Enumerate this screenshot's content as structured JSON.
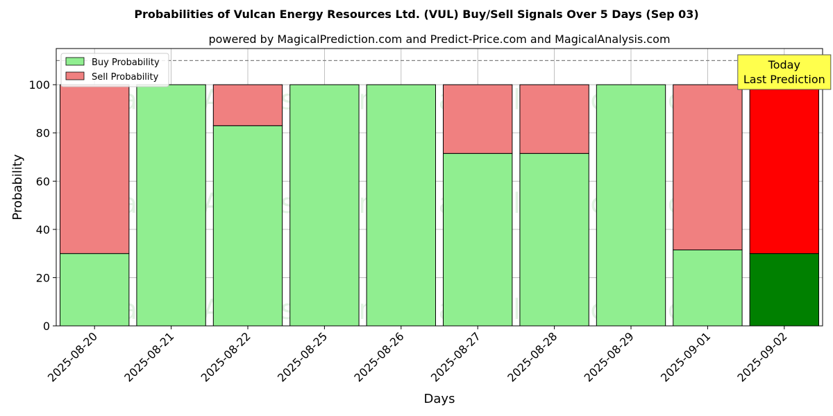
{
  "chart_data": {
    "type": "bar",
    "stacked": true,
    "title": "Probabilities of Vulcan Energy Resources Ltd. (VUL) Buy/Sell Signals Over 5 Days (Sep 03)",
    "subtitle": "powered by MagicalPrediction.com and Predict-Price.com and MagicalAnalysis.com",
    "xlabel": "Days",
    "ylabel": "Probability",
    "ylim": [
      0,
      115
    ],
    "yticks": [
      0,
      20,
      40,
      60,
      80,
      100
    ],
    "grid": true,
    "legend_position": "top-left",
    "categories": [
      "2025-08-20",
      "2025-08-21",
      "2025-08-22",
      "2025-08-25",
      "2025-08-26",
      "2025-08-27",
      "2025-08-28",
      "2025-08-29",
      "2025-09-01",
      "2025-09-02"
    ],
    "series": [
      {
        "name": "Buy Probability",
        "color": "#90ee90",
        "values": [
          30,
          100,
          83,
          100,
          100,
          71.5,
          71.5,
          100,
          31.5,
          30
        ]
      },
      {
        "name": "Sell Probability",
        "color": "#f08080",
        "values": [
          70,
          0,
          17,
          0,
          0,
          28.5,
          28.5,
          0,
          68.5,
          70
        ]
      }
    ],
    "highlight": {
      "index": 9,
      "buy_color": "#008000",
      "sell_color": "#ff0000"
    },
    "reference_line": {
      "y": 110,
      "style": "dashed",
      "color": "#808080"
    },
    "annotation": {
      "lines": [
        "Today",
        "Last Prediction"
      ],
      "category_index": 9,
      "background": "#ffff4d"
    },
    "watermarks": [
      "MagicalAnalysis.com",
      "MagicalPrediction.com"
    ]
  }
}
